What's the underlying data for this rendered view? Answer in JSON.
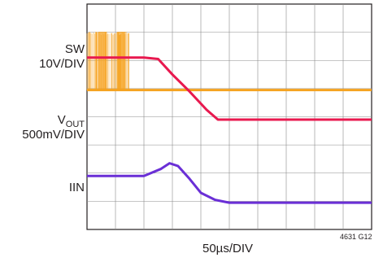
{
  "chart_data": {
    "type": "line",
    "title": "",
    "traces": [
      {
        "name": "SW",
        "scale": "10V/DIV",
        "color": "#f5a21f",
        "x": [
          0,
          0.8,
          1.6,
          3.0,
          4.0,
          5.0,
          6.0,
          7.0,
          8.0,
          9.0,
          10.0
        ],
        "y": [
          0.95,
          0.95,
          0.95,
          0.95,
          0.95,
          0.95,
          0.95,
          0.95,
          0.95,
          0.95,
          0.95
        ]
      },
      {
        "name_main": "V",
        "name_sub": "OUT",
        "scale": "500mV/DIV",
        "color": "#e8194f",
        "x": [
          0,
          1.0,
          2.0,
          2.5,
          3.0,
          3.6,
          4.2,
          4.6,
          5.0,
          6.0,
          7.0,
          8.0,
          9.0,
          10.0
        ],
        "y": [
          2.1,
          2.1,
          2.1,
          2.05,
          1.5,
          0.9,
          0.25,
          -0.1,
          -0.1,
          -0.1,
          -0.1,
          -0.1,
          -0.1,
          -0.1
        ]
      },
      {
        "name": "IIN",
        "scale": "",
        "color": "#6a2fd6",
        "x": [
          0,
          1.0,
          2.0,
          2.6,
          2.9,
          3.2,
          3.6,
          4.0,
          4.5,
          5.0,
          6.0,
          7.0,
          8.0,
          9.0,
          10.0
        ],
        "y": [
          -2.1,
          -2.1,
          -2.1,
          -1.85,
          -1.65,
          -1.75,
          -2.2,
          -2.7,
          -2.95,
          -3.05,
          -3.05,
          -3.05,
          -3.05,
          -3.05,
          -3.05
        ]
      }
    ],
    "sw_switching_region": [
      0,
      1.5
    ],
    "x_divisions": 10,
    "y_divisions": 8,
    "xlabel": "50µs/DIV",
    "grid": true,
    "figure_id": "4631 G12",
    "sw_label": "SW",
    "vout_label_main": "V",
    "vout_label_sub": "OUT",
    "iin_label": "IIN",
    "sw_scale": "10V/DIV",
    "vout_scale": "500mV/DIV"
  }
}
